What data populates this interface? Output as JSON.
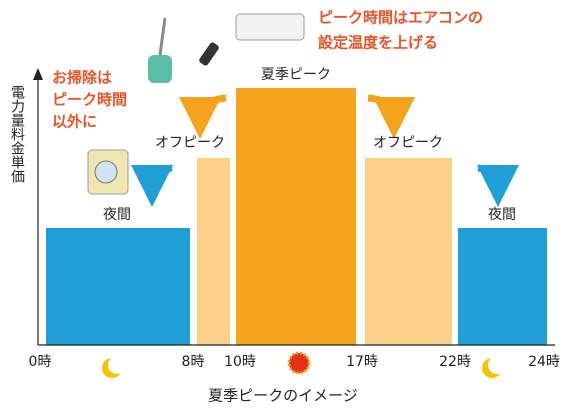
{
  "title": "夏季ピークのイメージ",
  "y_axis_label": "電力量料金単価",
  "time_labels": [
    "0時",
    "8時",
    "10時",
    "17時",
    "22時",
    "24時"
  ],
  "segments": [
    {
      "label": "夜間"
    },
    {
      "label": "オフピーク"
    },
    {
      "label": "夏季ピーク"
    },
    {
      "label": "オフピーク"
    },
    {
      "label": "夜間"
    }
  ],
  "notes": [
    {
      "lines": [
        "お掃除は",
        "ピーク時間",
        "以外に"
      ]
    },
    {
      "lines": [
        "ピーク時間はエアコンの",
        "設定温度を上げる"
      ]
    }
  ]
}
